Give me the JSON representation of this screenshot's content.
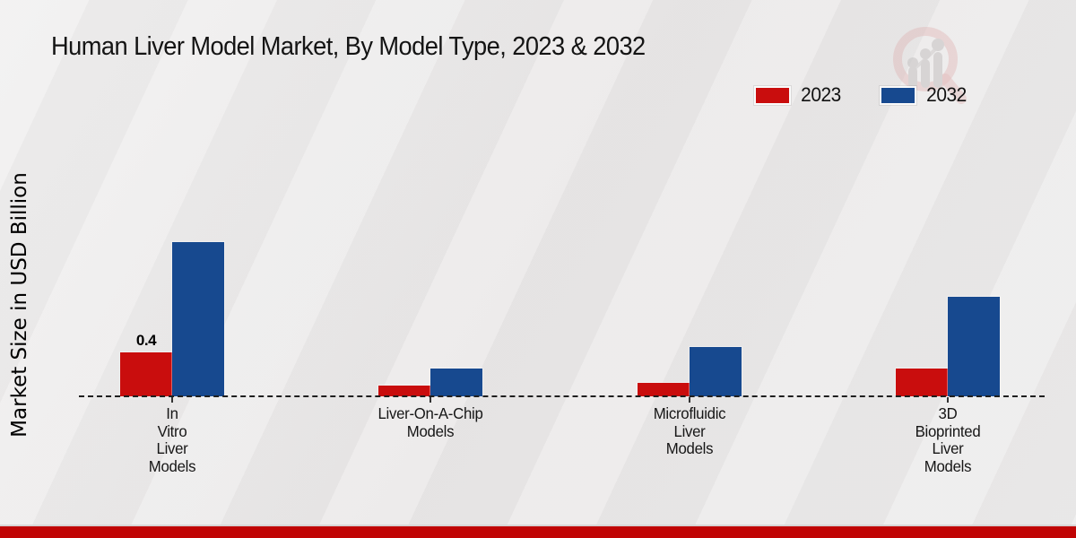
{
  "title": "Human Liver Model Market, By Model Type, 2023 & 2032",
  "y_axis_label": "Market Size in USD Billion",
  "legend": [
    {
      "label": "2023",
      "color": "#c90d0d"
    },
    {
      "label": "2032",
      "color": "#17498f"
    }
  ],
  "colors": {
    "series_2023": "#c90d0d",
    "series_2032": "#17498f",
    "bottom_strip": "#c00404",
    "baseline": "#1f1f1f",
    "background": "#ebe9e9"
  },
  "watermark": {
    "name": "market-research-magnifier-logo"
  },
  "chart_data": {
    "type": "bar",
    "title": "Human Liver Model Market, By Model Type, 2023 & 2032",
    "xlabel": "",
    "ylabel": "Market Size in USD Billion",
    "categories": [
      "In Vitro Liver Models",
      "Liver-On-A-Chip Models",
      "Microfluidic Liver Models",
      "3D Bioprinted Liver Models"
    ],
    "category_label_lines": [
      [
        "In",
        "Vitro",
        "Liver",
        "Models"
      ],
      [
        "Liver-On-A-Chip",
        "Models"
      ],
      [
        "Microfluidic",
        "Liver",
        "Models"
      ],
      [
        "3D",
        "Bioprinted",
        "Liver",
        "Models"
      ]
    ],
    "series": [
      {
        "name": "2023",
        "color": "#c90d0d",
        "values": [
          0.4,
          0.1,
          0.12,
          0.25
        ]
      },
      {
        "name": "2032",
        "color": "#17498f",
        "values": [
          1.4,
          0.25,
          0.45,
          0.9
        ]
      }
    ],
    "data_labels": [
      {
        "series": "2023",
        "category_index": 0,
        "text": "0.4"
      }
    ],
    "ylim": [
      0,
      1.5
    ],
    "grid": false,
    "legend_position": "top-right",
    "baseline_style": "dashed"
  }
}
